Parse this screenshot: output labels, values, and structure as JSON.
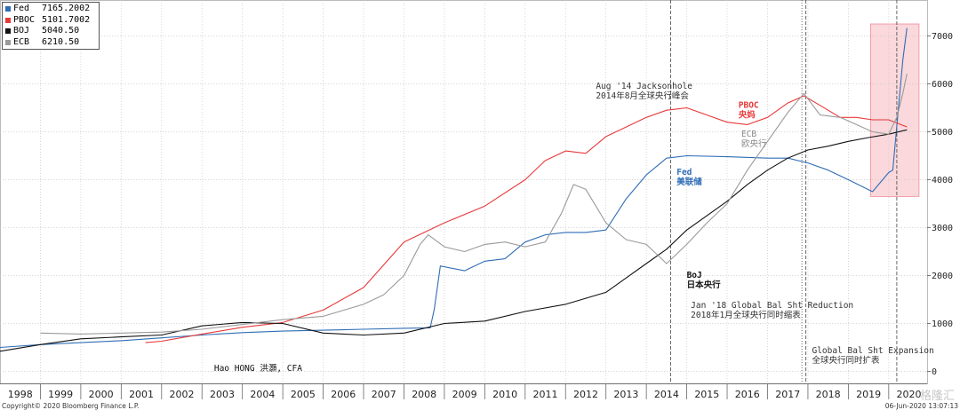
{
  "legend": [
    {
      "name": "Fed",
      "value": "7165.2002",
      "color": "#2f6db5"
    },
    {
      "name": "PBOC",
      "value": "5101.7002",
      "color": "#e8393a"
    },
    {
      "name": "BOJ",
      "value": "5040.50",
      "color": "#111111"
    },
    {
      "name": "ECB",
      "value": "6210.50",
      "color": "#9a9a9a"
    }
  ],
  "footer": {
    "copyright": "Copyright© 2020 Bloomberg Finance L.P.",
    "timestamp": "06-Jun-2020 13:07:13"
  },
  "watermark": "格隆汇",
  "chart_data": {
    "type": "line",
    "x_ticks": [
      "1998",
      "1999",
      "2000",
      "2001",
      "2002",
      "2003",
      "2004",
      "2005",
      "2006",
      "2007",
      "2008",
      "2009",
      "2010",
      "2011",
      "2012",
      "2013",
      "2014",
      "2015",
      "2016",
      "2017",
      "2018",
      "2019",
      "2020"
    ],
    "xlim": [
      1998,
      2020.95
    ],
    "y_ticks": [
      "0",
      "1000",
      "2000",
      "3000",
      "4000",
      "5000",
      "6000",
      "7000"
    ],
    "ylim": [
      -250,
      7750
    ],
    "grid": true,
    "legend_position": "top-left",
    "series": [
      {
        "name": "Fed",
        "color": "#2f6db5",
        "points": [
          [
            1998,
            500
          ],
          [
            1999,
            560
          ],
          [
            2000,
            600
          ],
          [
            2001,
            640
          ],
          [
            2002,
            700
          ],
          [
            2003,
            760
          ],
          [
            2004,
            810
          ],
          [
            2005,
            840
          ],
          [
            2006,
            860
          ],
          [
            2007,
            880
          ],
          [
            2008,
            900
          ],
          [
            2008.65,
            910
          ],
          [
            2008.75,
            1300
          ],
          [
            2008.9,
            2200
          ],
          [
            2009.5,
            2100
          ],
          [
            2010,
            2300
          ],
          [
            2010.5,
            2350
          ],
          [
            2011,
            2700
          ],
          [
            2011.5,
            2850
          ],
          [
            2012,
            2900
          ],
          [
            2012.5,
            2900
          ],
          [
            2013,
            2950
          ],
          [
            2013.5,
            3600
          ],
          [
            2014,
            4100
          ],
          [
            2014.5,
            4450
          ],
          [
            2015,
            4500
          ],
          [
            2016,
            4480
          ],
          [
            2017,
            4450
          ],
          [
            2017.5,
            4450
          ],
          [
            2018,
            4350
          ],
          [
            2018.5,
            4200
          ],
          [
            2019,
            4000
          ],
          [
            2019.6,
            3750
          ],
          [
            2019.85,
            4000
          ],
          [
            2020,
            4150
          ],
          [
            2020.1,
            4200
          ],
          [
            2020.22,
            5300
          ],
          [
            2020.35,
            6500
          ],
          [
            2020.45,
            7165.2002
          ]
        ]
      },
      {
        "name": "PBOC",
        "color": "#e8393a",
        "points": [
          [
            2001.6,
            600
          ],
          [
            2002,
            630
          ],
          [
            2003,
            780
          ],
          [
            2004,
            920
          ],
          [
            2005,
            1020
          ],
          [
            2006,
            1280
          ],
          [
            2007,
            1750
          ],
          [
            2008,
            2700
          ],
          [
            2009,
            3100
          ],
          [
            2010,
            3450
          ],
          [
            2011,
            4000
          ],
          [
            2011.5,
            4400
          ],
          [
            2012,
            4600
          ],
          [
            2012.5,
            4550
          ],
          [
            2013,
            4900
          ],
          [
            2013.5,
            5100
          ],
          [
            2014,
            5300
          ],
          [
            2014.5,
            5450
          ],
          [
            2015,
            5500
          ],
          [
            2015.5,
            5350
          ],
          [
            2016,
            5200
          ],
          [
            2016.5,
            5150
          ],
          [
            2017,
            5300
          ],
          [
            2017.5,
            5600
          ],
          [
            2017.9,
            5750
          ],
          [
            2018.3,
            5550
          ],
          [
            2018.8,
            5300
          ],
          [
            2019.2,
            5300
          ],
          [
            2019.6,
            5250
          ],
          [
            2020,
            5250
          ],
          [
            2020.3,
            5150
          ],
          [
            2020.45,
            5101.7002
          ]
        ]
      },
      {
        "name": "BOJ",
        "color": "#111111",
        "points": [
          [
            1998,
            420
          ],
          [
            1999,
            560
          ],
          [
            2000,
            680
          ],
          [
            2001,
            720
          ],
          [
            2002,
            760
          ],
          [
            2003,
            950
          ],
          [
            2004,
            1020
          ],
          [
            2005,
            1000
          ],
          [
            2006,
            800
          ],
          [
            2007,
            760
          ],
          [
            2008,
            800
          ],
          [
            2009,
            1000
          ],
          [
            2010,
            1050
          ],
          [
            2011,
            1250
          ],
          [
            2012,
            1400
          ],
          [
            2013,
            1650
          ],
          [
            2013.5,
            1950
          ],
          [
            2014,
            2250
          ],
          [
            2014.5,
            2550
          ],
          [
            2015,
            2950
          ],
          [
            2016,
            3550
          ],
          [
            2016.5,
            3900
          ],
          [
            2017,
            4200
          ],
          [
            2017.5,
            4450
          ],
          [
            2018,
            4620
          ],
          [
            2018.5,
            4700
          ],
          [
            2019,
            4800
          ],
          [
            2019.5,
            4880
          ],
          [
            2020,
            4950
          ],
          [
            2020.45,
            5040.5
          ]
        ]
      },
      {
        "name": "ECB",
        "color": "#9a9a9a",
        "points": [
          [
            1999,
            800
          ],
          [
            2000,
            780
          ],
          [
            2001,
            800
          ],
          [
            2002,
            820
          ],
          [
            2003,
            880
          ],
          [
            2004,
            980
          ],
          [
            2005,
            1080
          ],
          [
            2006,
            1150
          ],
          [
            2007,
            1400
          ],
          [
            2007.5,
            1600
          ],
          [
            2008,
            2000
          ],
          [
            2008.4,
            2650
          ],
          [
            2008.6,
            2850
          ],
          [
            2009,
            2600
          ],
          [
            2009.5,
            2500
          ],
          [
            2010,
            2650
          ],
          [
            2010.5,
            2700
          ],
          [
            2011,
            2600
          ],
          [
            2011.5,
            2700
          ],
          [
            2011.9,
            3300
          ],
          [
            2012.2,
            3900
          ],
          [
            2012.5,
            3800
          ],
          [
            2013,
            3100
          ],
          [
            2013.5,
            2750
          ],
          [
            2014,
            2650
          ],
          [
            2014.5,
            2250
          ],
          [
            2015,
            2650
          ],
          [
            2015.5,
            3100
          ],
          [
            2016,
            3500
          ],
          [
            2016.5,
            4200
          ],
          [
            2017,
            4800
          ],
          [
            2017.5,
            5400
          ],
          [
            2017.9,
            5800
          ],
          [
            2018.3,
            5350
          ],
          [
            2018.8,
            5300
          ],
          [
            2019.2,
            5150
          ],
          [
            2019.6,
            5000
          ],
          [
            2020,
            4950
          ],
          [
            2020.2,
            5300
          ],
          [
            2020.35,
            5800
          ],
          [
            2020.45,
            6210.5
          ]
        ]
      }
    ],
    "vlines": [
      {
        "x": 2014.6,
        "style": "dashed"
      },
      {
        "x": 2017.85,
        "style": "dotted"
      },
      {
        "x": 2017.95,
        "style": "dashed"
      },
      {
        "x": 2020.2,
        "style": "dashed"
      }
    ],
    "highlight_region": {
      "x": [
        2019.55,
        2020.75
      ],
      "y": [
        3650,
        7250
      ],
      "color": "#f5b8bf"
    },
    "annotations": [
      {
        "x": 2012.75,
        "y": 5900,
        "lines": [
          "Aug '14 Jacksonhole",
          "2014年8月全球央行峰会"
        ],
        "color": "#333333",
        "weight": "normal",
        "anchor": "start"
      },
      {
        "x": 2016.28,
        "y": 5500,
        "lines": [
          "PBOC",
          "央妈"
        ],
        "color": "#e8393a",
        "weight": "bold",
        "anchor": "start"
      },
      {
        "x": 2016.35,
        "y": 4900,
        "lines": [
          "ECB",
          "欧央行"
        ],
        "color": "#888888",
        "weight": "normal",
        "anchor": "start"
      },
      {
        "x": 2014.75,
        "y": 4100,
        "lines": [
          "Fed",
          "美联储"
        ],
        "color": "#2f6db5",
        "weight": "bold",
        "anchor": "start"
      },
      {
        "x": 2015.0,
        "y": 1950,
        "lines": [
          "BoJ",
          "日本央行"
        ],
        "color": "#111111",
        "weight": "bold",
        "anchor": "start"
      },
      {
        "x": 2015.1,
        "y": 1320,
        "lines": [
          "Jan '18 Global Bal Sht Reduction",
          "2018年1月全球央行同时缩表"
        ],
        "color": "#333333",
        "weight": "normal",
        "anchor": "start"
      },
      {
        "x": 2018.1,
        "y": 380,
        "lines": [
          "Global Bal Sht Expansion",
          "全球央行同时扩表"
        ],
        "color": "#333333",
        "weight": "normal",
        "anchor": "start"
      },
      {
        "x": 2003.3,
        "y": 10,
        "lines": [
          "Hao HONG 洪灝, CFA"
        ],
        "color": "#111111",
        "weight": "normal",
        "anchor": "start"
      }
    ]
  }
}
